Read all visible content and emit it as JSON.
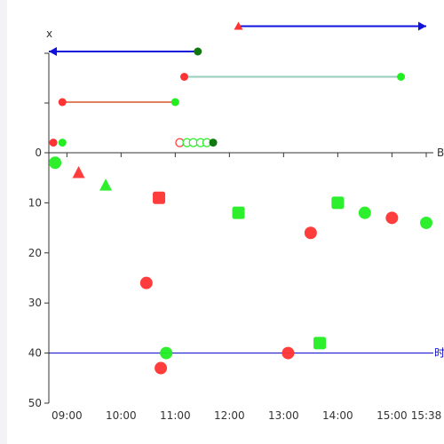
{
  "chart_data": {
    "type": "scatter",
    "y_axis": {
      "name": "x",
      "range": [
        0,
        50
      ],
      "inverted": true,
      "ticks": [
        "0",
        "10",
        "20",
        "30",
        "40",
        "50"
      ]
    },
    "x_axis": {
      "name": "时",
      "range": [
        "08:40",
        "15:38"
      ],
      "ticks": [
        "09:00",
        "10:00",
        "11:00",
        "12:00",
        "13:00",
        "14:00",
        "15:00",
        "15:38"
      ],
      "edge_label_fragment": "B"
    },
    "reference_line": {
      "y": 40,
      "label": "时",
      "color": "#0000cc"
    },
    "colors": {
      "red": "#ff3333",
      "green": "#22ee22",
      "darkgreen": "#117711",
      "blue": "#1111dd",
      "salmon": "#e08060",
      "mint": "#99ccbb"
    },
    "points": [
      {
        "time": "08:47",
        "y": 2,
        "shape": "circle",
        "color": "green"
      },
      {
        "time": "09:13",
        "y": 4,
        "shape": "triangle",
        "color": "red"
      },
      {
        "time": "09:43",
        "y": 6.5,
        "shape": "triangle",
        "color": "green"
      },
      {
        "time": "10:28",
        "y": 26,
        "shape": "circle",
        "color": "red"
      },
      {
        "time": "10:42",
        "y": 9,
        "shape": "square",
        "color": "red"
      },
      {
        "time": "10:44",
        "y": 43,
        "shape": "circle",
        "color": "red"
      },
      {
        "time": "10:50",
        "y": 40,
        "shape": "circle",
        "color": "green"
      },
      {
        "time": "12:10",
        "y": 12,
        "shape": "square",
        "color": "green"
      },
      {
        "time": "13:05",
        "y": 40,
        "shape": "circle",
        "color": "red"
      },
      {
        "time": "13:30",
        "y": 16,
        "shape": "circle",
        "color": "red"
      },
      {
        "time": "13:40",
        "y": 38,
        "shape": "square",
        "color": "green"
      },
      {
        "time": "14:00",
        "y": 10,
        "shape": "square",
        "color": "green"
      },
      {
        "time": "14:30",
        "y": 12,
        "shape": "circle",
        "color": "green"
      },
      {
        "time": "15:00",
        "y": 13,
        "shape": "circle",
        "color": "red"
      },
      {
        "time": "15:38",
        "y": 14,
        "shape": "circle",
        "color": "green"
      }
    ],
    "timeline": {
      "segments": [
        {
          "start": "11:25",
          "end": "08:40",
          "level": 4,
          "color": "blue",
          "start_marker": "darkgreen",
          "arrow": "left"
        },
        {
          "start": "12:10",
          "end": "15:38",
          "level": 5,
          "color": "blue",
          "start_marker": "red-triangle",
          "arrow": "right"
        },
        {
          "start": "11:10",
          "end": "15:10",
          "level": 3,
          "color": "mint",
          "start_marker": "red",
          "end_marker": "green"
        },
        {
          "start": "08:55",
          "end": "11:00",
          "level": 2,
          "color": "salmon",
          "start_marker": "red",
          "end_marker": "green"
        }
      ],
      "base_markers": [
        {
          "time": "08:45",
          "color": "red",
          "style": "filled"
        },
        {
          "time": "08:55",
          "color": "green",
          "style": "filled"
        },
        {
          "time": "11:05",
          "color": "red",
          "style": "hollow"
        },
        {
          "time": "11:13",
          "color": "green",
          "style": "hollow"
        },
        {
          "time": "11:20",
          "color": "green",
          "style": "hollow"
        },
        {
          "time": "11:28",
          "color": "green",
          "style": "hollow"
        },
        {
          "time": "11:35",
          "color": "green",
          "style": "hollow"
        },
        {
          "time": "11:42",
          "color": "darkgreen",
          "style": "filled"
        }
      ]
    }
  }
}
